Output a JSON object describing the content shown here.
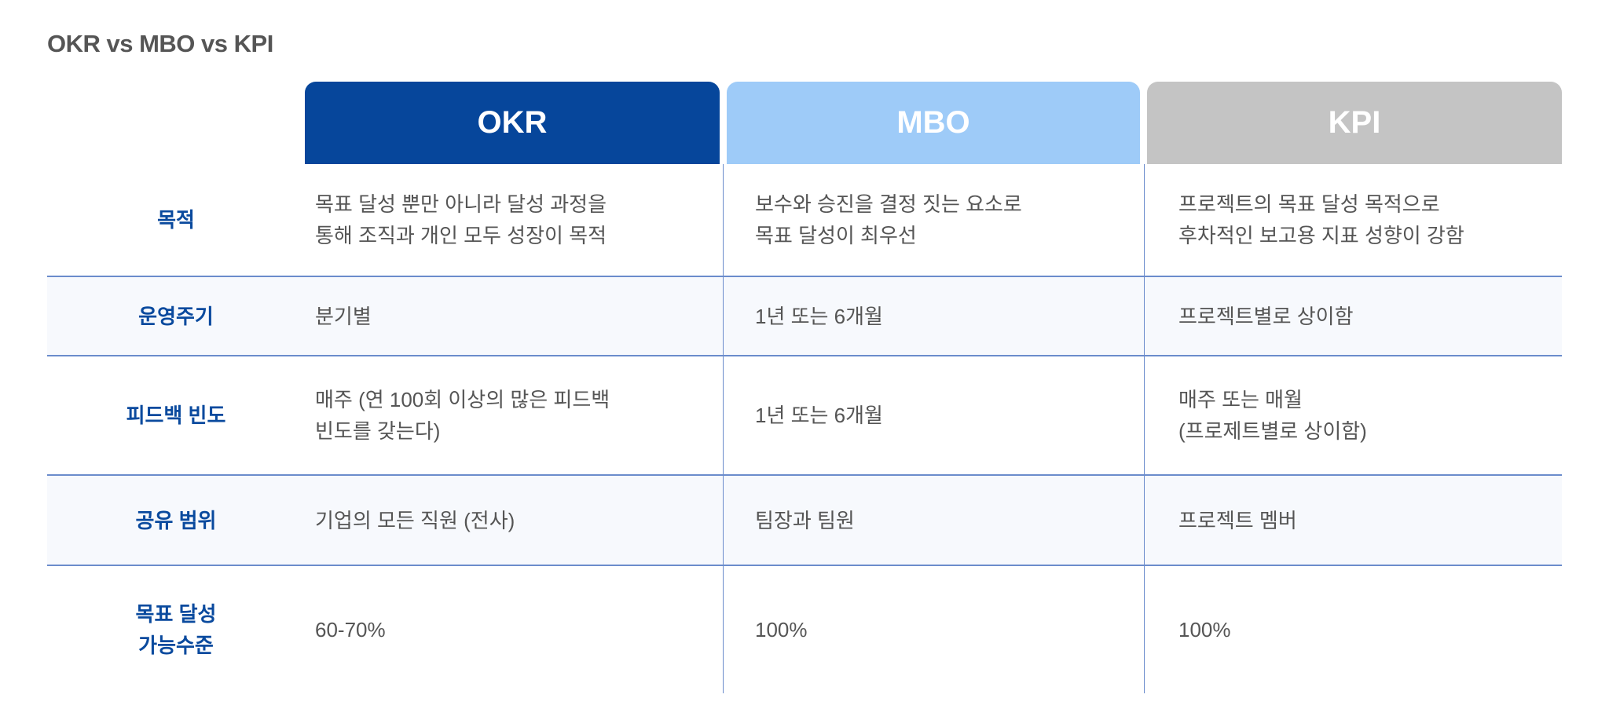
{
  "title": "OKR vs MBO vs KPI",
  "columns": [
    {
      "label": "OKR",
      "color": "#06469b"
    },
    {
      "label": "MBO",
      "color": "#9ecbf8"
    },
    {
      "label": "KPI",
      "color": "#c4c4c4"
    }
  ],
  "rows": [
    {
      "label": "목적",
      "cells": [
        "목표 달성 뿐만 아니라 달성 과정을\n통해 조직과 개인 모두 성장이 목적",
        "보수와 승진을 결정 짓는 요소로\n목표 달성이 최우선",
        "프로젝트의 목표 달성 목적으로\n후차적인 보고용 지표 성향이 강함"
      ]
    },
    {
      "label": "운영주기",
      "cells": [
        "분기별",
        "1년 또는 6개월",
        "프로젝트별로 상이함"
      ]
    },
    {
      "label": "피드백 빈도",
      "cells": [
        "매주 (연 100회 이상의 많은 피드백\n 빈도를 갖는다)",
        "1년 또는 6개월",
        "매주 또는 매월\n(프로제트별로 상이함)"
      ]
    },
    {
      "label": "공유 범위",
      "cells": [
        "기업의 모든 직원 (전사)",
        "팀장과 팀원",
        "프로젝트 멤버"
      ]
    },
    {
      "label": "목표 달성\n가능수준",
      "cells": [
        "60-70%",
        "100%",
        "100%"
      ]
    }
  ]
}
